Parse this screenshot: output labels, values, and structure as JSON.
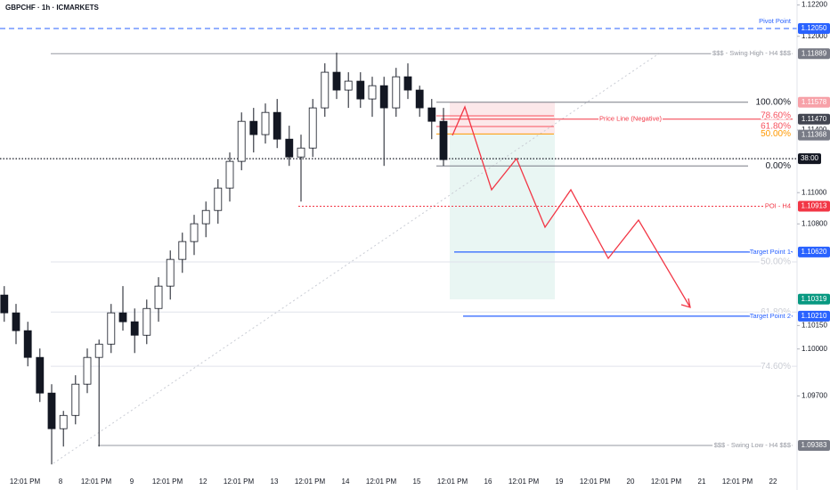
{
  "chart_data": {
    "type": "candlestick",
    "title": "GBPCHF · 1h · ICMARKETS",
    "x_labels": [
      "12:01 PM",
      "8",
      "12:01 PM",
      "9",
      "12:01 PM",
      "12",
      "12:01 PM",
      "13",
      "12:01 PM",
      "14",
      "12:01 PM",
      "15",
      "12:01 PM",
      "16",
      "12:01 PM",
      "19",
      "12:01 PM",
      "20",
      "12:01 PM",
      "21",
      "12:01 PM",
      "22"
    ],
    "xlim": [
      -0.7,
      21.675
    ],
    "ylim": [
      1.09098,
      1.12232
    ],
    "yticks": [
      {
        "value": 1.122,
        "label": "1.12200"
      },
      {
        "value": 1.12,
        "label": "1.12000"
      },
      {
        "value": 1.114,
        "label": "1.11400"
      },
      {
        "value": 1.11,
        "label": "1.11000"
      },
      {
        "value": 1.108,
        "label": "1.10800"
      },
      {
        "value": 1.1015,
        "label": "1.10150"
      },
      {
        "value": 1.1,
        "label": "1.10000"
      },
      {
        "value": 1.097,
        "label": "1.09700"
      }
    ],
    "x": [
      -0.58,
      -0.25,
      0.08,
      0.42,
      0.75,
      1.08,
      1.42,
      1.75,
      2.08,
      2.42,
      2.75,
      3.08,
      3.42,
      3.75,
      4.08,
      4.42,
      4.75,
      5.08,
      5.42,
      5.75,
      6.08,
      6.42,
      6.75,
      7.08,
      7.42,
      7.75,
      8.08,
      8.42,
      8.75,
      9.08,
      9.42,
      9.75,
      10.08,
      10.42,
      10.75,
      11.08,
      11.42,
      11.75
    ],
    "open": [
      1.10345,
      1.10231,
      1.10117,
      1.09946,
      1.09718,
      1.0949,
      1.09575,
      1.09775,
      1.09946,
      1.10031,
      1.10231,
      1.10174,
      1.10088,
      1.10259,
      1.10402,
      1.10573,
      1.10687,
      1.10801,
      1.10886,
      1.11029,
      1.112,
      1.11456,
      1.11371,
      1.11513,
      1.11342,
      1.11228,
      1.11285,
      1.11542,
      1.1177,
      1.11656,
      1.11713,
      1.11599,
      1.11684,
      1.11542,
      1.11741,
      1.11656,
      1.11542,
      1.11456
    ],
    "high": [
      1.10402,
      1.10288,
      1.10174,
      1.10003,
      1.09775,
      1.09604,
      1.09832,
      1.10003,
      1.1006,
      1.10288,
      1.10402,
      1.10259,
      1.10316,
      1.10459,
      1.1063,
      1.10744,
      1.10858,
      1.10943,
      1.11086,
      1.11257,
      1.11513,
      1.11542,
      1.1157,
      1.11599,
      1.11428,
      1.11371,
      1.11599,
      1.11827,
      1.11895,
      1.1177,
      1.1177,
      1.11741,
      1.11741,
      1.11798,
      1.11827,
      1.11684,
      1.11599,
      1.11542
    ],
    "low": [
      1.10174,
      1.10031,
      1.09889,
      1.09661,
      1.09262,
      1.09376,
      1.09518,
      1.09718,
      1.09376,
      1.09974,
      1.10117,
      1.09974,
      1.10031,
      1.10174,
      1.10316,
      1.10487,
      1.10601,
      1.10715,
      1.10801,
      1.10943,
      1.11143,
      1.11257,
      1.11314,
      1.11285,
      1.11171,
      1.10943,
      1.11228,
      1.11485,
      1.11599,
      1.11542,
      1.11542,
      1.11485,
      1.11171,
      1.11485,
      1.11599,
      1.11485,
      1.11342,
      1.11171
    ],
    "close": [
      1.10231,
      1.10117,
      1.09946,
      1.09718,
      1.0949,
      1.09575,
      1.09775,
      1.09946,
      1.10031,
      1.10231,
      1.10174,
      1.10088,
      1.10259,
      1.10402,
      1.10573,
      1.10687,
      1.10801,
      1.10886,
      1.11029,
      1.112,
      1.11456,
      1.11371,
      1.11513,
      1.11342,
      1.11228,
      1.11285,
      1.11542,
      1.1177,
      1.11656,
      1.11713,
      1.11599,
      1.11684,
      1.11542,
      1.11741,
      1.11656,
      1.11542,
      1.11456,
      1.11211
    ],
    "levels": [
      {
        "name": "Pivot Point",
        "value": 1.1205,
        "value_label": "1.12050",
        "color": "#2962ff"
      },
      {
        "name": "$$$ - Swing High - H4 $$$",
        "value": 1.11889,
        "value_label": "1.11889",
        "color": "#9598a1"
      },
      {
        "name": "Price Line (Negative)",
        "value": 1.1147,
        "value_label": "1.11470",
        "color": "#f23645"
      },
      {
        "name": "POI - H4",
        "value": 1.10913,
        "value_label": "1.10913",
        "color": "#f23645"
      },
      {
        "name": "Target Point 1",
        "value": 1.1062,
        "value_label": "1.10620",
        "color": "#2962ff"
      },
      {
        "name": "Target Point 2",
        "value": 1.1021,
        "value_label": "1.10210",
        "color": "#2962ff"
      },
      {
        "name": "$$$ - Swing Low - H4 $$$",
        "value": 1.09383,
        "value_label": "1.09383",
        "color": "#9598a1"
      }
    ],
    "fib": {
      "prices": [
        1.11578,
        1.11491,
        1.11423,
        1.11375,
        1.11171
      ],
      "labels": [
        "100.00%",
        "78.60%",
        "61.80%",
        "50.00%",
        "0.00%"
      ],
      "colors": [
        "#131722",
        "#f7525f",
        "#f7525f",
        "#ff9800",
        "#131722"
      ]
    },
    "fib_wide": {
      "prices": [
        1.10557,
        1.10236,
        1.09889
      ],
      "labels": [
        "50.00%",
        "61.80%",
        "74.60%"
      ],
      "color": "#c9ccd4"
    },
    "badges": [
      {
        "value": 1.11578,
        "label": "1.11578",
        "color": "#f7a1a8"
      },
      {
        "value": 1.11368,
        "label": "1.11368",
        "color": "#787b86"
      },
      {
        "value": 1.10319,
        "label": "1.10319",
        "color": "#089981"
      }
    ],
    "last_price": 1.11217,
    "countdown": "38:00"
  }
}
